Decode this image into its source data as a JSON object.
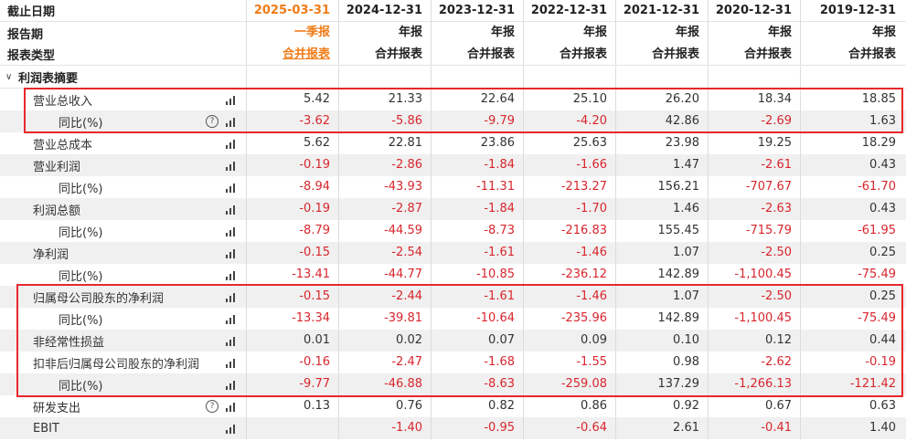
{
  "header": {
    "row1_label": "截止日期",
    "row2_label": "报告期",
    "row3_label": "报表类型",
    "periods": [
      {
        "date": "2025-03-31",
        "report": "一季报",
        "type": "合并报表"
      },
      {
        "date": "2024-12-31",
        "report": "年报",
        "type": "合并报表"
      },
      {
        "date": "2023-12-31",
        "report": "年报",
        "type": "合并报表"
      },
      {
        "date": "2022-12-31",
        "report": "年报",
        "type": "合并报表"
      },
      {
        "date": "2021-12-31",
        "report": "年报",
        "type": "合并报表"
      },
      {
        "date": "2020-12-31",
        "report": "年报",
        "type": "合并报表"
      },
      {
        "date": "2019-12-31",
        "report": "年报",
        "type": "合并报表"
      }
    ]
  },
  "section": {
    "label": "利润表摘要",
    "icon": "chevron-down-icon"
  },
  "rows": [
    {
      "label": "营业总收入",
      "values": [
        "5.42",
        "21.33",
        "22.64",
        "25.10",
        "26.20",
        "18.34",
        "18.85"
      ]
    },
    {
      "label": "同比(%)",
      "values": [
        "-3.62",
        "-5.86",
        "-9.79",
        "-4.20",
        "42.86",
        "-2.69",
        "1.63"
      ]
    },
    {
      "label": "营业总成本",
      "values": [
        "5.62",
        "22.81",
        "23.86",
        "25.63",
        "23.98",
        "19.25",
        "18.29"
      ]
    },
    {
      "label": "营业利润",
      "values": [
        "-0.19",
        "-2.86",
        "-1.84",
        "-1.66",
        "1.47",
        "-2.61",
        "0.43"
      ]
    },
    {
      "label": "同比(%)",
      "values": [
        "-8.94",
        "-43.93",
        "-11.31",
        "-213.27",
        "156.21",
        "-707.67",
        "-61.70"
      ]
    },
    {
      "label": "利润总额",
      "values": [
        "-0.19",
        "-2.87",
        "-1.84",
        "-1.70",
        "1.46",
        "-2.63",
        "0.43"
      ]
    },
    {
      "label": "同比(%)",
      "values": [
        "-8.79",
        "-44.59",
        "-8.73",
        "-216.83",
        "155.45",
        "-715.79",
        "-61.95"
      ]
    },
    {
      "label": "净利润",
      "values": [
        "-0.15",
        "-2.54",
        "-1.61",
        "-1.46",
        "1.07",
        "-2.50",
        "0.25"
      ]
    },
    {
      "label": "同比(%)",
      "values": [
        "-13.41",
        "-44.77",
        "-10.85",
        "-236.12",
        "142.89",
        "-1,100.45",
        "-75.49"
      ]
    },
    {
      "label": "归属母公司股东的净利润",
      "values": [
        "-0.15",
        "-2.44",
        "-1.61",
        "-1.46",
        "1.07",
        "-2.50",
        "0.25"
      ]
    },
    {
      "label": "同比(%)",
      "values": [
        "-13.34",
        "-39.81",
        "-10.64",
        "-235.96",
        "142.89",
        "-1,100.45",
        "-75.49"
      ]
    },
    {
      "label": "非经常性损益",
      "values": [
        "0.01",
        "0.02",
        "0.07",
        "0.09",
        "0.10",
        "0.12",
        "0.44"
      ]
    },
    {
      "label": "扣非后归属母公司股东的净利润",
      "values": [
        "-0.16",
        "-2.47",
        "-1.68",
        "-1.55",
        "0.98",
        "-2.62",
        "-0.19"
      ]
    },
    {
      "label": "同比(%)",
      "values": [
        "-9.77",
        "-46.88",
        "-8.63",
        "-259.08",
        "137.29",
        "-1,266.13",
        "-121.42"
      ]
    },
    {
      "label": "研发支出",
      "values": [
        "0.13",
        "0.76",
        "0.82",
        "0.86",
        "0.92",
        "0.67",
        "0.63"
      ]
    },
    {
      "label": "EBIT",
      "values": [
        "",
        "-1.40",
        "-0.95",
        "-0.64",
        "2.61",
        "-0.41",
        "1.40"
      ]
    }
  ],
  "colors": {
    "negative": "#d8262d",
    "accent": "#ef7b16",
    "highlight_box": "#e8282b"
  }
}
